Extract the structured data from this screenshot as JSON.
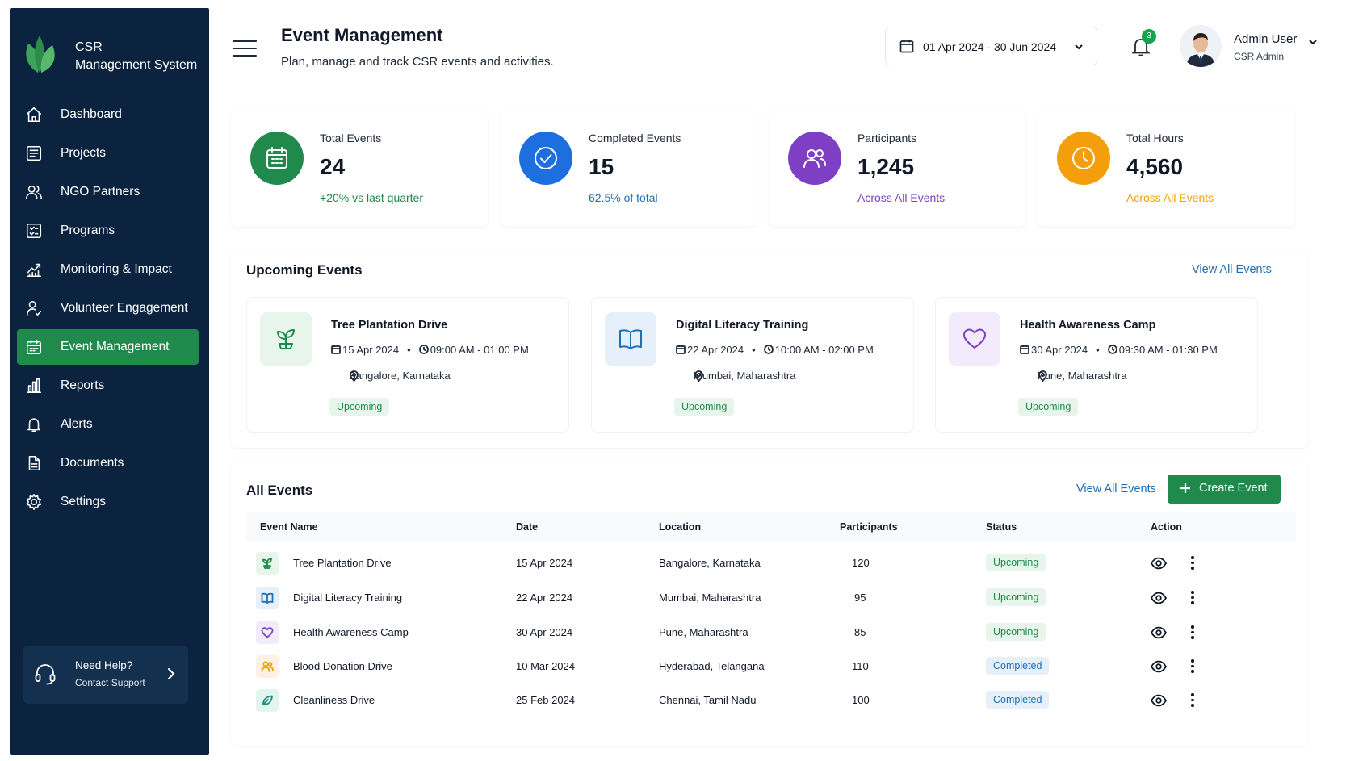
{
  "brand": {
    "title_line1": "CSR",
    "title_line2": "Management System"
  },
  "nav": [
    {
      "label": "Dashboard",
      "icon": "home-icon"
    },
    {
      "label": "Projects",
      "icon": "projects-icon"
    },
    {
      "label": "NGO Partners",
      "icon": "users-icon"
    },
    {
      "label": "Programs",
      "icon": "programs-icon"
    },
    {
      "label": "Monitoring & Impact",
      "icon": "chart-line-icon"
    },
    {
      "label": "Volunteer Engagement",
      "icon": "volunteer-icon"
    },
    {
      "label": "Event Management",
      "icon": "calendar-icon",
      "active": true
    },
    {
      "label": "Reports",
      "icon": "bar-chart-icon"
    },
    {
      "label": "Alerts",
      "icon": "bell-icon"
    },
    {
      "label": "Documents",
      "icon": "document-icon"
    },
    {
      "label": "Settings",
      "icon": "gear-icon"
    }
  ],
  "help": {
    "title": "Need Help?",
    "subtitle": "Contact Support"
  },
  "header": {
    "title": "Event Management",
    "subtitle": "Plan, manage and track CSR events and activities.",
    "date_range": "01 Apr 2024 - 30 Jun 2024",
    "notification_count": "3",
    "user_name": "Admin User",
    "user_role": "CSR Admin"
  },
  "stats": [
    {
      "label": "Total Events",
      "value": "24",
      "note": "+20% vs last quarter",
      "color": "#1f8a4c",
      "note_color": "#1f8a4c",
      "icon": "calendar-icon"
    },
    {
      "label": "Completed Events",
      "value": "15",
      "note": "62.5% of total",
      "color": "#1d6fe0",
      "note_color": "#1d6fb8",
      "icon": "check-circle-icon"
    },
    {
      "label": "Participants",
      "value": "1,245",
      "note": "Across All Events",
      "color": "#7e3fc4",
      "note_color": "#7e3fc4",
      "icon": "users-icon"
    },
    {
      "label": "Total Hours",
      "value": "4,560",
      "note": "Across All Events",
      "color": "#f59e0b",
      "note_color": "#f59e0b",
      "icon": "clock-icon"
    }
  ],
  "upcoming": {
    "title": "Upcoming Events",
    "view_all": "View All Events",
    "events": [
      {
        "title": "Tree Plantation Drive",
        "date": "15 Apr 2024",
        "time": "09:00 AM - 01:00 PM",
        "location": "Bangalore, Karnataka",
        "status": "Upcoming",
        "icon": "sprout-icon"
      },
      {
        "title": "Digital Literacy Training",
        "date": "22 Apr 2024",
        "time": "10:00 AM - 02:00 PM",
        "location": "Mumbai, Maharashtra",
        "status": "Upcoming",
        "icon": "book-icon"
      },
      {
        "title": "Health Awareness Camp",
        "date": "30 Apr 2024",
        "time": "09:30 AM - 01:30 PM",
        "location": "Pune, Maharashtra",
        "status": "Upcoming",
        "icon": "heart-icon"
      }
    ]
  },
  "all_events": {
    "title": "All Events",
    "view_all": "View All Events",
    "create_label": "Create Event",
    "columns": [
      "Event Name",
      "Date",
      "Location",
      "Participants",
      "Status",
      "Action"
    ],
    "rows": [
      {
        "name": "Tree Plantation Drive",
        "date": "15 Apr 2024",
        "location": "Bangalore, Karnataka",
        "participants": "120",
        "status": "Upcoming",
        "icon": "sprout-icon"
      },
      {
        "name": "Digital Literacy Training",
        "date": "22 Apr 2024",
        "location": "Mumbai, Maharashtra",
        "participants": "95",
        "status": "Upcoming",
        "icon": "book-icon"
      },
      {
        "name": "Health Awareness Camp",
        "date": "30 Apr 2024",
        "location": "Pune, Maharashtra",
        "participants": "85",
        "status": "Upcoming",
        "icon": "heart-icon"
      },
      {
        "name": "Blood Donation Drive",
        "date": "10 Mar 2024",
        "location": "Hyderabad, Telangana",
        "participants": "110",
        "status": "Completed",
        "icon": "people-icon"
      },
      {
        "name": "Cleanliness Drive",
        "date": "25 Feb 2024",
        "location": "Chennai, Tamil Nadu",
        "participants": "100",
        "status": "Completed",
        "icon": "leaf-icon"
      }
    ]
  }
}
